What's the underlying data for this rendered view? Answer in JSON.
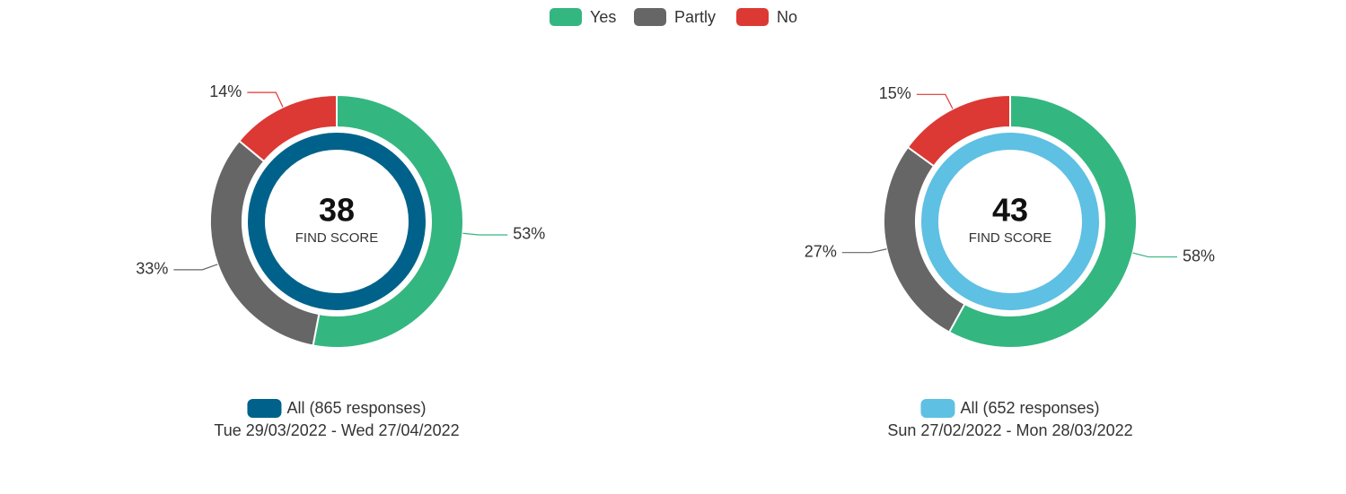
{
  "chart_data": {
    "type": "donut",
    "categories": [
      "Yes",
      "Partly",
      "No"
    ],
    "colors": [
      "#34b680",
      "#666666",
      "#dc3934"
    ],
    "charts": [
      {
        "score": 38,
        "score_label": "FIND SCORE",
        "values": [
          53,
          33,
          14
        ],
        "value_labels": [
          "53%",
          "33%",
          "14%"
        ],
        "ring_color": "#00628a",
        "caption": "All (865 responses)",
        "date_range": "Tue 29/03/2022 - Wed 27/04/2022"
      },
      {
        "score": 43,
        "score_label": "FIND SCORE",
        "values": [
          58,
          27,
          15
        ],
        "value_labels": [
          "58%",
          "27%",
          "15%"
        ],
        "ring_color": "#5ec0e3",
        "caption": "All (652 responses)",
        "date_range": "Sun 27/02/2022 - Mon 28/03/2022"
      }
    ]
  }
}
